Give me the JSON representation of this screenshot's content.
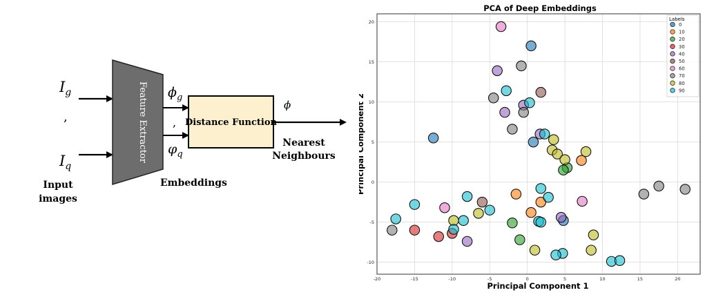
{
  "diagram": {
    "inputs": {
      "i_g": {
        "base": "I",
        "sub": "g"
      },
      "sep": ",",
      "i_q": {
        "base": "I",
        "sub": "q"
      },
      "label_line1": "Input",
      "label_line2": "images"
    },
    "feature_extractor_label": "Feature Extractor",
    "embeddings": {
      "phi_g": {
        "base": "ϕ",
        "sub": "g"
      },
      "sep": ",",
      "phi_q": {
        "base": "φ",
        "sub": "q"
      },
      "label": "Embeddings"
    },
    "distance_function_label": "Distance Function",
    "phi_output": "ϕ",
    "nearest_line1": "Nearest",
    "nearest_line2": "Neighbours",
    "colors": {
      "trapezoid": "#6d6d6d",
      "distance_box": "#fdf0cf"
    }
  },
  "chart_data": {
    "type": "scatter",
    "title": "PCA of Deep Embeddings",
    "xlabel": "Principal Component 1",
    "ylabel": "Principal Component 2",
    "xlim": [
      -20,
      23
    ],
    "ylim": [
      -11.5,
      21
    ],
    "xticks": [
      -20,
      -15,
      -10,
      -5,
      0,
      5,
      10,
      15,
      20
    ],
    "yticks": [
      -10,
      -5,
      0,
      5,
      10,
      15,
      20
    ],
    "grid": true,
    "legend": {
      "title": "Labels",
      "placement": "top-right"
    },
    "series": [
      {
        "name": "0",
        "color": "#1f77b4",
        "points": [
          [
            0.5,
            17.0
          ],
          [
            4.8,
            -4.8
          ],
          [
            0.8,
            5.0
          ],
          [
            -12.5,
            5.5
          ]
        ]
      },
      {
        "name": "10",
        "color": "#ff7f0e",
        "points": [
          [
            -1.5,
            -1.5
          ],
          [
            1.8,
            -2.5
          ],
          [
            0.5,
            -3.8
          ],
          [
            7.2,
            2.7
          ]
        ]
      },
      {
        "name": "20",
        "color": "#2ca02c",
        "points": [
          [
            -2.0,
            -5.1
          ],
          [
            -1.0,
            -7.2
          ],
          [
            5.3,
            1.8
          ],
          [
            4.8,
            1.5
          ]
        ]
      },
      {
        "name": "30",
        "color": "#d62728",
        "points": [
          [
            -15.0,
            -6.0
          ],
          [
            -11.8,
            -6.8
          ],
          [
            -10.0,
            -6.4
          ]
        ]
      },
      {
        "name": "40",
        "color": "#9467bd",
        "points": [
          [
            -4.0,
            13.9
          ],
          [
            -3.0,
            8.7
          ],
          [
            -0.5,
            9.6
          ],
          [
            1.7,
            6.0
          ],
          [
            -8.0,
            -7.4
          ],
          [
            4.5,
            -4.4
          ]
        ]
      },
      {
        "name": "50",
        "color": "#8c564b",
        "points": [
          [
            1.8,
            11.2
          ],
          [
            -6.0,
            -2.5
          ]
        ]
      },
      {
        "name": "60",
        "color": "#e377c2",
        "points": [
          [
            -3.5,
            19.4
          ],
          [
            -11.0,
            -3.2
          ],
          [
            7.3,
            -2.4
          ]
        ]
      },
      {
        "name": "70",
        "color": "#7f7f7f",
        "points": [
          [
            -4.5,
            10.5
          ],
          [
            -0.8,
            14.5
          ],
          [
            -2.0,
            6.6
          ],
          [
            -0.5,
            8.7
          ],
          [
            15.5,
            -1.5
          ],
          [
            17.5,
            -0.5
          ],
          [
            21.0,
            -0.9
          ],
          [
            -18.0,
            -6.0
          ]
        ]
      },
      {
        "name": "80",
        "color": "#bcbd22",
        "points": [
          [
            3.5,
            5.3
          ],
          [
            3.3,
            4.0
          ],
          [
            4.0,
            3.5
          ],
          [
            5.0,
            2.8
          ],
          [
            7.8,
            3.8
          ],
          [
            -6.5,
            -3.9
          ],
          [
            1.0,
            -8.5
          ],
          [
            8.5,
            -8.5
          ],
          [
            8.8,
            -6.6
          ],
          [
            -9.8,
            -4.8
          ]
        ]
      },
      {
        "name": "90",
        "color": "#17becf",
        "points": [
          [
            0.3,
            9.9
          ],
          [
            2.3,
            6.0
          ],
          [
            -2.8,
            11.4
          ],
          [
            1.8,
            -0.8
          ],
          [
            -17.5,
            -4.6
          ],
          [
            -15.0,
            -2.8
          ],
          [
            -8.0,
            -1.8
          ],
          [
            -8.5,
            -4.8
          ],
          [
            -5.0,
            -3.5
          ],
          [
            -9.8,
            -5.9
          ],
          [
            2.8,
            -1.9
          ],
          [
            1.5,
            -4.9
          ],
          [
            1.8,
            -5.0
          ],
          [
            4.7,
            -8.9
          ],
          [
            3.8,
            -9.1
          ],
          [
            11.2,
            -9.9
          ],
          [
            12.3,
            -9.8
          ]
        ]
      }
    ]
  }
}
